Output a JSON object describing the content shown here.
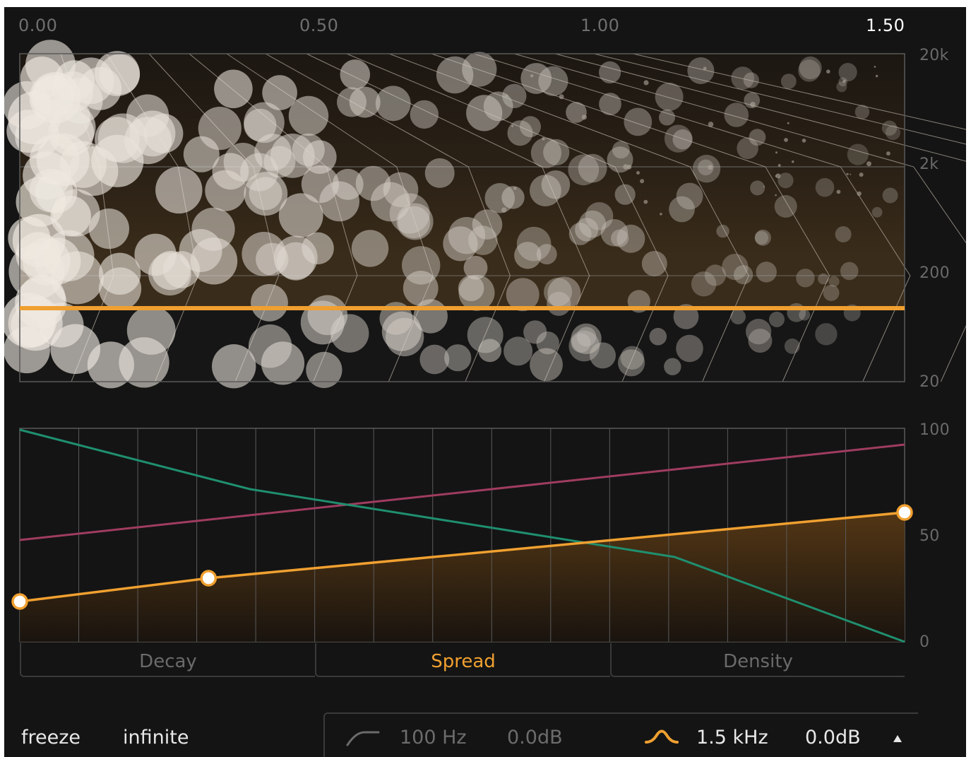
{
  "time_axis": {
    "ticks": [
      "0.00",
      "0.50",
      "1.00",
      "1.50"
    ],
    "active_tick": "1.50"
  },
  "freq_axis": {
    "labels": [
      "20k",
      "2k",
      "200",
      "20"
    ]
  },
  "level_axis": {
    "labels": [
      "100",
      "50",
      "0"
    ]
  },
  "tabs": [
    {
      "label": "Decay",
      "active": false
    },
    {
      "label": "Spread",
      "active": true
    },
    {
      "label": "Density",
      "active": false
    }
  ],
  "bottom": {
    "freeze_label": "freeze",
    "infinite_label": "infinite"
  },
  "eq": {
    "low": {
      "icon": "low-shelf-icon",
      "freq": "100 Hz",
      "gain": "0.0dB"
    },
    "high": {
      "icon": "bell-filter-icon",
      "freq": "1.5 kHz",
      "gain": "0.0dB"
    },
    "expand_icon": "triangle-up-icon"
  },
  "modulation": {
    "spread_points": [
      {
        "t": 0.0,
        "value": 19
      },
      {
        "t": 0.32,
        "value": 30
      },
      {
        "t": 1.5,
        "value": 61
      }
    ],
    "decay_line": [
      {
        "t": 0.0,
        "value": 100
      },
      {
        "t": 0.39,
        "value": 72
      },
      {
        "t": 1.11,
        "value": 40
      },
      {
        "t": 1.5,
        "value": 0
      }
    ],
    "density_line": [
      {
        "t": 0.0,
        "value": 48
      },
      {
        "t": 1.5,
        "value": 93
      }
    ]
  },
  "colors": {
    "accent": "#f0a030",
    "decay": "#1f8f6f",
    "density": "#a03c60",
    "background": "#141414",
    "grid": "#5a5a5a"
  }
}
